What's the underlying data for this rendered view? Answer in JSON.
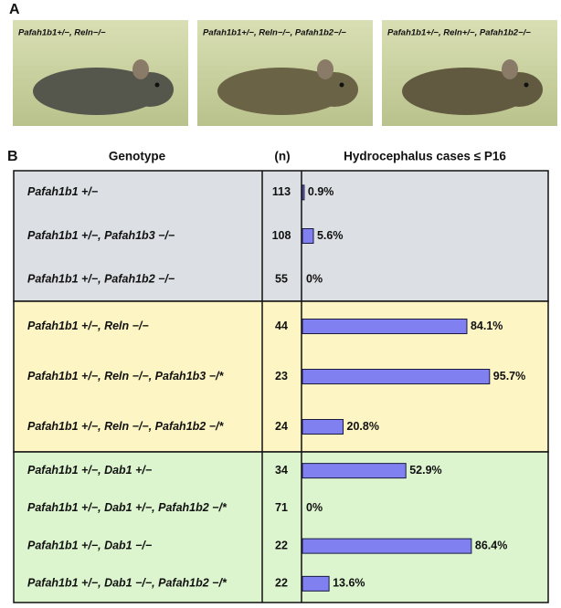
{
  "panel_a": {
    "label": "A",
    "photos": [
      {
        "caption": "Pafah1b1+/−, Reln−/−"
      },
      {
        "caption": "Pafah1b1+/−, Reln−/−, Pafah1b2−/−"
      },
      {
        "caption": "Pafah1b1+/−, Reln+/−, Pafah1b2−/−"
      }
    ]
  },
  "panel_b": {
    "label": "B",
    "headers": [
      "Genotype",
      "(n)",
      "Hydrocephalus cases ≤ P16"
    ],
    "groups": [
      {
        "rows": [
          {
            "genotype": "Pafah1b1 +/−",
            "n": 113,
            "value": 0.9,
            "value_label": "0.9%"
          },
          {
            "genotype": "Pafah1b1 +/−, Pafah1b3 −/−",
            "n": 108,
            "value": 5.6,
            "value_label": "5.6%"
          },
          {
            "genotype": "Pafah1b1 +/−, Pafah1b2 −/−",
            "n": 55,
            "value": 0,
            "value_label": "0%"
          }
        ]
      },
      {
        "rows": [
          {
            "genotype": "Pafah1b1 +/−, Reln −/−",
            "n": 44,
            "value": 84.1,
            "value_label": "84.1%"
          },
          {
            "genotype": "Pafah1b1 +/−, Reln −/−, Pafah1b3 −/*",
            "n": 23,
            "value": 95.7,
            "value_label": "95.7%"
          },
          {
            "genotype": "Pafah1b1 +/−, Reln −/−, Pafah1b2 −/*",
            "n": 24,
            "value": 20.8,
            "value_label": "20.8%"
          }
        ]
      },
      {
        "rows": [
          {
            "genotype": "Pafah1b1 +/−, Dab1 +/−",
            "n": 34,
            "value": 52.9,
            "value_label": "52.9%"
          },
          {
            "genotype": "Pafah1b1 +/−, Dab1 +/−, Pafah1b2 −/*",
            "n": 71,
            "value": 0,
            "value_label": "0%"
          },
          {
            "genotype": "Pafah1b1 +/−, Dab1 −/−",
            "n": 22,
            "value": 86.4,
            "value_label": "86.4%"
          },
          {
            "genotype": "Pafah1b1 +/−, Dab1 −/−, Pafah1b2 −/*",
            "n": 22,
            "value": 13.6,
            "value_label": "13.6%"
          }
        ]
      }
    ]
  }
}
